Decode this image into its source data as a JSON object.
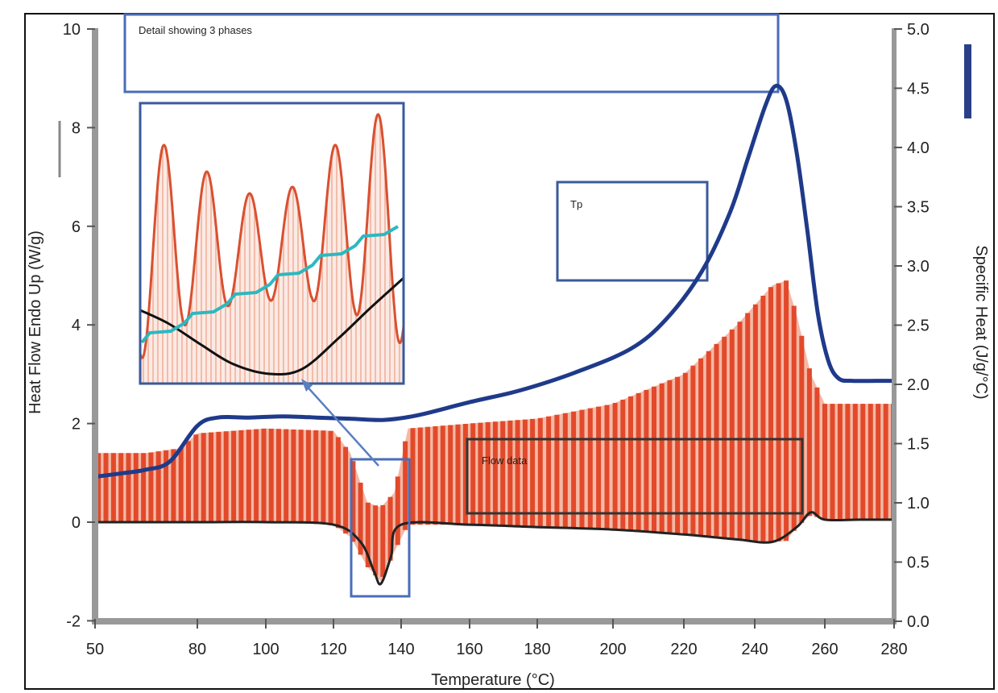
{
  "chart_data": {
    "type": "line",
    "xlabel": "Temperature (°C)",
    "ylabel_left": "Heat Flow Endo Up (W/g)",
    "ylabel_right": "Specific Heat (J/g/°C)",
    "xlim": [
      50,
      280
    ],
    "ylim_left": [
      -2,
      10
    ],
    "ylim_right": [
      0.0,
      5.0
    ],
    "x_ticks": [
      "50",
      "80",
      "100",
      "120",
      "140",
      "160",
      "180",
      "200",
      "220",
      "240",
      "260",
      "280"
    ],
    "y_ticks_left": [
      "-2",
      "0",
      "2",
      "4",
      "6",
      "8",
      "10"
    ],
    "y_ticks_right": [
      "0.0",
      "0.5",
      "1.0",
      "1.5",
      "2.0",
      "2.5",
      "3.0",
      "3.5",
      "4.0",
      "4.5",
      "5.0"
    ],
    "grid": false,
    "series": [
      {
        "name": "Specific Heat",
        "axis": "right",
        "color": "#1f3a8a",
        "x": [
          50,
          58,
          65,
          72,
          80,
          86,
          95,
          105,
          115,
          125,
          135,
          145,
          160,
          175,
          190,
          205,
          215,
          225,
          233,
          238,
          243,
          246,
          249,
          252,
          255,
          258,
          261,
          264,
          268,
          275,
          280
        ],
        "y": [
          1.22,
          1.25,
          1.28,
          1.35,
          1.65,
          1.72,
          1.72,
          1.73,
          1.72,
          1.71,
          1.7,
          1.74,
          1.85,
          1.95,
          2.1,
          2.3,
          2.55,
          2.95,
          3.45,
          3.9,
          4.35,
          4.52,
          4.4,
          3.95,
          3.3,
          2.6,
          2.2,
          2.05,
          2.03,
          2.03,
          2.03
        ]
      },
      {
        "name": "Heat Flow",
        "axis": "left",
        "color": "#222222",
        "x": [
          50,
          80,
          100,
          120,
          128,
          132,
          134,
          137,
          140,
          160,
          180,
          200,
          220,
          235,
          245,
          252,
          256,
          260,
          270,
          280
        ],
        "y": [
          0.0,
          0.0,
          0.0,
          -0.05,
          -0.4,
          -1.0,
          -1.25,
          -0.7,
          -0.05,
          -0.05,
          -0.1,
          -0.15,
          -0.25,
          -0.35,
          -0.4,
          -0.1,
          0.2,
          0.05,
          0.05,
          0.05
        ]
      }
    ],
    "modulated_heat_flow": {
      "color": "#e2492a",
      "x": [
        50,
        65,
        75,
        80,
        100,
        120,
        125,
        130,
        134,
        138,
        142,
        160,
        180,
        200,
        220,
        235,
        245,
        249,
        252,
        256,
        260,
        270,
        280
      ],
      "upper": [
        1.4,
        1.4,
        1.5,
        1.8,
        1.9,
        1.85,
        1.4,
        0.4,
        0.3,
        0.6,
        1.9,
        2.0,
        2.1,
        2.4,
        3.0,
        4.0,
        4.8,
        4.9,
        4.2,
        3.0,
        2.4,
        2.4,
        2.4
      ],
      "lower": [
        0.0,
        0.0,
        0.0,
        0.0,
        0.0,
        -0.05,
        -0.3,
        -0.9,
        -1.2,
        -0.6,
        -0.05,
        -0.05,
        -0.1,
        -0.15,
        -0.25,
        -0.35,
        -0.4,
        -0.38,
        -0.1,
        0.15,
        0.05,
        0.05,
        0.05
      ]
    },
    "annotations": {
      "top_box": "Detail showing 3 phases",
      "tp_box": "Tp",
      "bottom_box": "Flow data"
    },
    "inset": {
      "cycles": 6,
      "modulated_color": "#d95030",
      "cp_color": "#2cb8c0",
      "base_color": "#111111"
    }
  }
}
